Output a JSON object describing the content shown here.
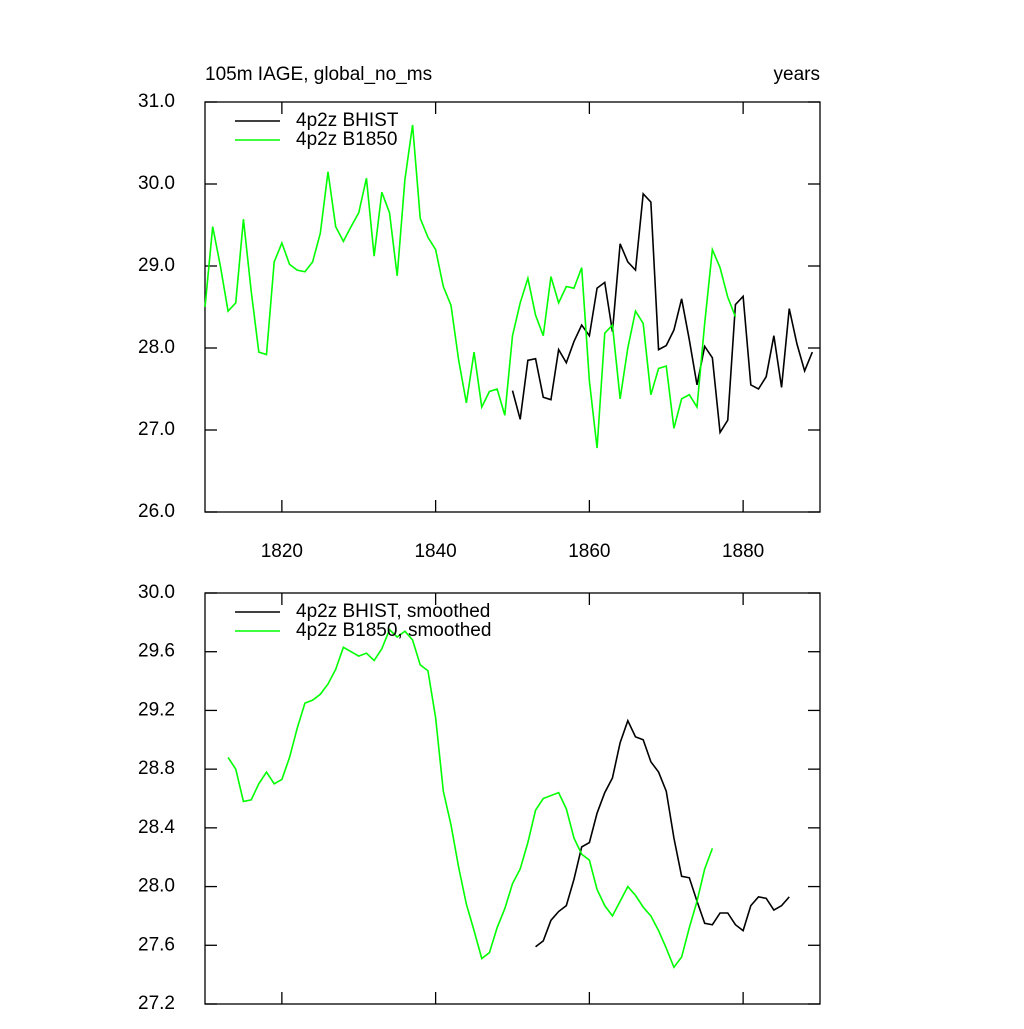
{
  "chart_data": [
    {
      "type": "line",
      "title": "105m IAGE, global_no_ms",
      "title_right": "years",
      "xlim": [
        1810,
        1890
      ],
      "xticks": [
        1820,
        1840,
        1860,
        1880
      ],
      "ylim": [
        26,
        31
      ],
      "yticks": [
        {
          "value": 26,
          "label": "26.0"
        },
        {
          "value": 27,
          "label": "27.0"
        },
        {
          "value": 28,
          "label": "28.0"
        },
        {
          "value": 29,
          "label": "29.0"
        },
        {
          "value": 30,
          "label": "30.0"
        },
        {
          "value": 31,
          "label": "31.0"
        }
      ],
      "show_xtick_labels": true,
      "series": [
        {
          "name": "4p2z BHIST",
          "color": "#000000",
          "x": [
            1850,
            1851,
            1852,
            1853,
            1854,
            1855,
            1856,
            1857,
            1858,
            1859,
            1860,
            1861,
            1862,
            1863,
            1864,
            1865,
            1866,
            1867,
            1868,
            1869,
            1870,
            1871,
            1872,
            1873,
            1874,
            1875,
            1876,
            1877,
            1878,
            1879,
            1880,
            1881,
            1882,
            1883,
            1884,
            1885,
            1886,
            1887,
            1888,
            1889
          ],
          "values": [
            27.48,
            27.13,
            27.85,
            27.87,
            27.4,
            27.37,
            27.98,
            27.82,
            28.08,
            28.28,
            28.15,
            28.73,
            28.8,
            28.2,
            29.27,
            29.05,
            28.95,
            29.88,
            29.78,
            27.98,
            28.03,
            28.22,
            28.6,
            28.1,
            27.55,
            28.02,
            27.88,
            26.97,
            27.12,
            28.53,
            28.63,
            27.55,
            27.5,
            27.65,
            28.15,
            27.52,
            28.48,
            28.05,
            27.72,
            27.95
          ]
        },
        {
          "name": "4p2z B1850",
          "color": "#00ff00",
          "x": [
            1810,
            1811,
            1812,
            1813,
            1814,
            1815,
            1816,
            1817,
            1818,
            1819,
            1820,
            1821,
            1822,
            1823,
            1824,
            1825,
            1826,
            1827,
            1828,
            1829,
            1830,
            1831,
            1832,
            1833,
            1834,
            1835,
            1836,
            1837,
            1838,
            1839,
            1840,
            1841,
            1842,
            1843,
            1844,
            1845,
            1846,
            1847,
            1848,
            1849,
            1850,
            1851,
            1852,
            1853,
            1854,
            1855,
            1856,
            1857,
            1858,
            1859,
            1860,
            1861,
            1862,
            1863,
            1864,
            1865,
            1866,
            1867,
            1868,
            1869,
            1870,
            1871,
            1872,
            1873,
            1874,
            1875,
            1876,
            1877,
            1878,
            1879
          ],
          "values": [
            28.5,
            29.48,
            29.0,
            28.45,
            28.55,
            29.57,
            28.7,
            27.95,
            27.92,
            29.05,
            29.28,
            29.02,
            28.95,
            28.93,
            29.05,
            29.4,
            30.15,
            29.48,
            29.3,
            29.48,
            29.65,
            30.07,
            29.12,
            29.9,
            29.65,
            28.88,
            30.05,
            30.72,
            29.58,
            29.35,
            29.2,
            28.75,
            28.52,
            27.85,
            27.33,
            27.95,
            27.28,
            27.47,
            27.5,
            27.18,
            28.15,
            28.55,
            28.85,
            28.4,
            28.15,
            28.87,
            28.55,
            28.75,
            28.73,
            28.98,
            27.6,
            26.78,
            28.18,
            28.28,
            27.38,
            28.0,
            28.45,
            28.3,
            27.43,
            27.75,
            27.78,
            27.02,
            27.38,
            27.43,
            27.28,
            28.3,
            29.2,
            28.98,
            28.62,
            28.38
          ]
        }
      ]
    },
    {
      "type": "line",
      "xlim": [
        1810,
        1890
      ],
      "xticks": [
        1820,
        1840,
        1860,
        1880
      ],
      "ylim": [
        27.2,
        30
      ],
      "yticks": [
        {
          "value": 27.2,
          "label": "27.2"
        },
        {
          "value": 27.6,
          "label": "27.6"
        },
        {
          "value": 28,
          "label": "28.0"
        },
        {
          "value": 28.4,
          "label": "28.4"
        },
        {
          "value": 28.8,
          "label": "28.8"
        },
        {
          "value": 29.2,
          "label": "29.2"
        },
        {
          "value": 29.6,
          "label": "29.6"
        },
        {
          "value": 30,
          "label": "30.0"
        }
      ],
      "show_xtick_labels": false,
      "series": [
        {
          "name": "4p2z BHIST, smoothed",
          "color": "#000000",
          "x": [
            1853,
            1854,
            1855,
            1856,
            1857,
            1858,
            1859,
            1860,
            1861,
            1862,
            1863,
            1864,
            1865,
            1866,
            1867,
            1868,
            1869,
            1870,
            1871,
            1872,
            1873,
            1874,
            1875,
            1876,
            1877,
            1878,
            1879,
            1880,
            1881,
            1882,
            1883,
            1884,
            1885,
            1886
          ],
          "values": [
            27.59,
            27.63,
            27.77,
            27.83,
            27.87,
            28.05,
            28.27,
            28.3,
            28.5,
            28.64,
            28.74,
            28.98,
            29.13,
            29.02,
            29.0,
            28.85,
            28.78,
            28.65,
            28.33,
            28.07,
            28.06,
            27.9,
            27.75,
            27.74,
            27.82,
            27.82,
            27.74,
            27.7,
            27.87,
            27.93,
            27.92,
            27.84,
            27.87,
            27.93
          ]
        },
        {
          "name": "4p2z B1850, smoothed",
          "color": "#00ff00",
          "x": [
            1813,
            1814,
            1815,
            1816,
            1817,
            1818,
            1819,
            1820,
            1821,
            1822,
            1823,
            1824,
            1825,
            1826,
            1827,
            1828,
            1829,
            1830,
            1831,
            1832,
            1833,
            1834,
            1835,
            1836,
            1837,
            1838,
            1839,
            1840,
            1841,
            1842,
            1843,
            1844,
            1845,
            1846,
            1847,
            1848,
            1849,
            1850,
            1851,
            1852,
            1853,
            1854,
            1855,
            1856,
            1857,
            1858,
            1859,
            1860,
            1861,
            1862,
            1863,
            1864,
            1865,
            1866,
            1867,
            1868,
            1869,
            1870,
            1871,
            1872,
            1873,
            1874,
            1875,
            1876
          ],
          "values": [
            28.88,
            28.8,
            28.58,
            28.59,
            28.7,
            28.78,
            28.7,
            28.73,
            28.88,
            29.08,
            29.25,
            29.27,
            29.31,
            29.38,
            29.48,
            29.63,
            29.6,
            29.57,
            29.59,
            29.54,
            29.62,
            29.75,
            29.7,
            29.74,
            29.68,
            29.51,
            29.47,
            29.15,
            28.65,
            28.42,
            28.13,
            27.88,
            27.7,
            27.51,
            27.55,
            27.72,
            27.85,
            28.02,
            28.12,
            28.3,
            28.52,
            28.6,
            28.62,
            28.64,
            28.53,
            28.33,
            28.22,
            28.18,
            27.98,
            27.87,
            27.8,
            27.9,
            28.0,
            27.94,
            27.86,
            27.8,
            27.7,
            27.58,
            27.45,
            27.52,
            27.72,
            27.9,
            28.12,
            28.26
          ]
        }
      ]
    }
  ]
}
